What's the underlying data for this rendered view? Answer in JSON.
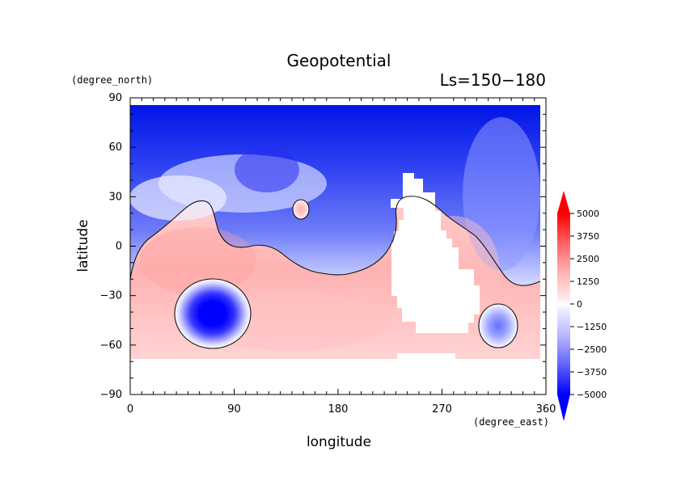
{
  "chart_data": {
    "type": "heatmap",
    "title": "Geopotential",
    "subtitle": "Ls=150−180",
    "xlabel": "longitude",
    "ylabel": "latitude",
    "x_unit": "(degree_east)",
    "y_unit": "(degree_north)",
    "xlim": [
      0,
      360
    ],
    "ylim": [
      -90,
      90
    ],
    "x_ticks": [
      "0",
      "90",
      "180",
      "270",
      "360"
    ],
    "y_ticks": [
      "90",
      "60",
      "30",
      "0",
      "−30",
      "−60",
      "−90"
    ],
    "x_tick_values": [
      0,
      90,
      180,
      270,
      360
    ],
    "y_tick_values": [
      90,
      60,
      30,
      0,
      -30,
      -60,
      -90
    ],
    "colorbar": {
      "min": -5000,
      "max": 5000,
      "labels": [
        "5000",
        "3750",
        "2500",
        "1250",
        "0",
        "−1250",
        "−2500",
        "−3750",
        "−5000"
      ],
      "colors": {
        "negative_max": "#0000ff",
        "zero": "#ffffff",
        "positive_max": "#ff0000"
      }
    },
    "features": {
      "low_regions": [
        {
          "lon": 72,
          "lat": -40,
          "value": -5000
        },
        {
          "lon": 325,
          "lat": -48,
          "value": -2800
        },
        {
          "lon": 147,
          "lat": 22,
          "value": 900
        }
      ],
      "missing_data": {
        "description": "",
        "lon_range": [
          220,
          300
        ],
        "lat_range": [
          -50,
          50
        ]
      },
      "zero_contour": true
    }
  }
}
